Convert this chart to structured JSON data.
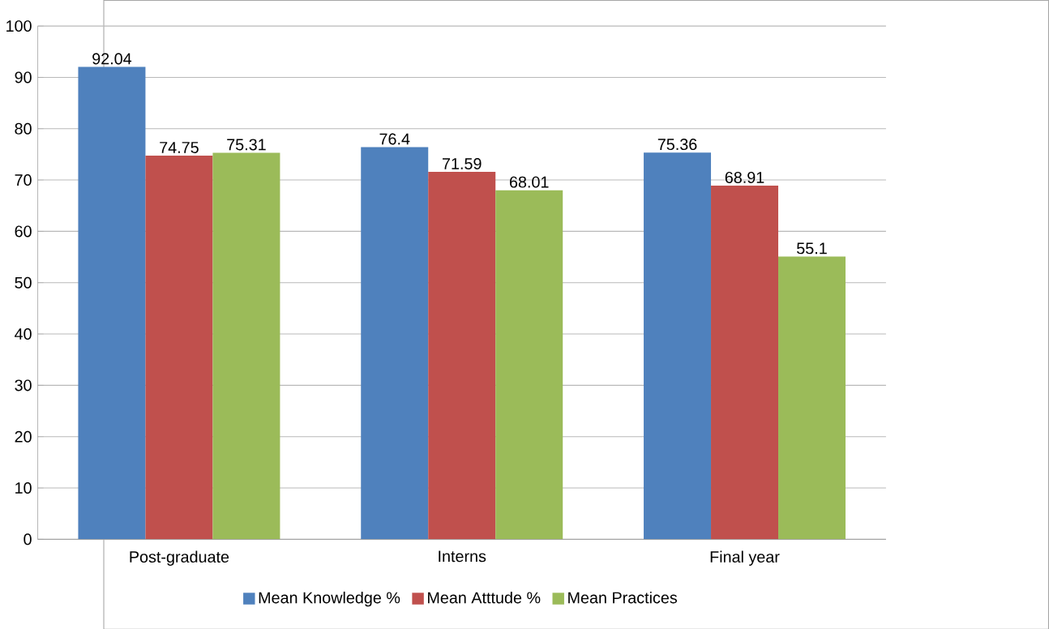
{
  "chart_data": {
    "type": "bar",
    "categories": [
      "Post-graduate",
      "Interns",
      "Final year"
    ],
    "series": [
      {
        "name": "Mean Knowledge %",
        "color": "#4f81bd",
        "values": [
          92.04,
          76.4,
          75.36
        ]
      },
      {
        "name": "Mean Atttude %",
        "color": "#c0504d",
        "values": [
          74.75,
          71.59,
          68.91
        ]
      },
      {
        "name": "Mean Practices",
        "color": "#9bbb59",
        "values": [
          75.31,
          68.01,
          55.1
        ]
      }
    ],
    "ylim": [
      0,
      100
    ],
    "yticks": [
      0,
      10,
      20,
      30,
      40,
      50,
      60,
      70,
      80,
      90,
      100
    ],
    "grid": "y",
    "legend": "bottom",
    "data_labels": true
  }
}
